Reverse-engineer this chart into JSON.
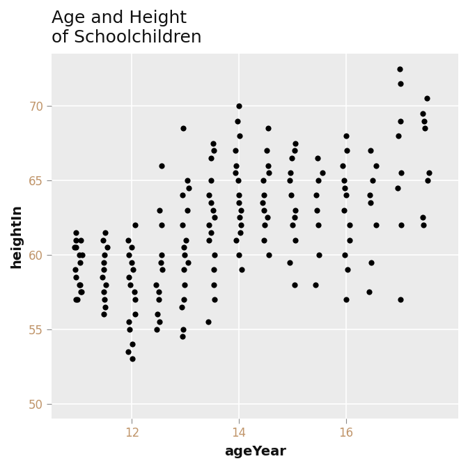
{
  "title": "Age and Height\nof Schoolchildren",
  "xlabel": "ageYear",
  "ylabel": "heightIn",
  "xlim": [
    10.5,
    18.1
  ],
  "ylim": [
    49.0,
    73.5
  ],
  "xticks": [
    12,
    14,
    16
  ],
  "yticks": [
    50,
    55,
    60,
    65,
    70
  ],
  "bg_color": "#EBEBEB",
  "grid_color": "#FFFFFF",
  "dot_color": "#000000",
  "dot_size": 35,
  "title_fontsize": 18,
  "label_fontsize": 14,
  "tick_fontsize": 12,
  "tick_color": "#C0956A",
  "jitter_seed": 42,
  "jitter_amount": 0.07,
  "x_base": [
    11.0,
    11.0,
    11.0,
    11.0,
    11.0,
    11.0,
    11.0,
    11.0,
    11.0,
    11.0,
    11.0,
    11.0,
    11.0,
    11.0,
    11.0,
    11.0,
    11.5,
    11.5,
    11.5,
    11.5,
    11.5,
    11.5,
    11.5,
    11.5,
    11.5,
    11.5,
    11.5,
    11.5,
    12.0,
    12.0,
    12.0,
    12.0,
    12.0,
    12.0,
    12.0,
    12.0,
    12.0,
    12.0,
    12.0,
    12.0,
    12.0,
    12.0,
    12.0,
    12.0,
    12.5,
    12.5,
    12.5,
    12.5,
    12.5,
    12.5,
    12.5,
    12.5,
    12.5,
    12.5,
    12.5,
    12.5,
    13.0,
    13.0,
    13.0,
    13.0,
    13.0,
    13.0,
    13.0,
    13.0,
    13.0,
    13.0,
    13.0,
    13.0,
    13.0,
    13.0,
    13.0,
    13.0,
    13.5,
    13.5,
    13.5,
    13.5,
    13.5,
    13.5,
    13.5,
    13.5,
    13.5,
    13.5,
    13.5,
    13.5,
    13.5,
    13.5,
    13.5,
    13.5,
    14.0,
    14.0,
    14.0,
    14.0,
    14.0,
    14.0,
    14.0,
    14.0,
    14.0,
    14.0,
    14.0,
    14.0,
    14.0,
    14.0,
    14.0,
    14.0,
    14.5,
    14.5,
    14.5,
    14.5,
    14.5,
    14.5,
    14.5,
    14.5,
    14.5,
    14.5,
    14.5,
    14.5,
    15.0,
    15.0,
    15.0,
    15.0,
    15.0,
    15.0,
    15.0,
    15.0,
    15.0,
    15.0,
    15.0,
    15.0,
    15.5,
    15.5,
    15.5,
    15.5,
    15.5,
    15.5,
    15.5,
    15.5,
    16.0,
    16.0,
    16.0,
    16.0,
    16.0,
    16.0,
    16.0,
    16.0,
    16.0,
    16.0,
    16.0,
    16.0,
    16.5,
    16.5,
    16.5,
    16.5,
    16.5,
    16.5,
    16.5,
    16.5,
    17.0,
    17.0,
    17.0,
    17.0,
    17.0,
    17.0,
    17.0,
    17.0,
    17.5,
    17.5,
    17.5,
    17.5,
    17.5,
    17.5,
    17.5,
    17.5
  ],
  "y": [
    57.0,
    57.5,
    58.0,
    58.0,
    57.0,
    58.5,
    59.0,
    57.5,
    60.0,
    59.5,
    60.5,
    60.0,
    61.0,
    60.5,
    61.5,
    61.0,
    56.0,
    56.5,
    57.0,
    57.5,
    58.0,
    58.5,
    59.0,
    59.5,
    60.0,
    60.5,
    61.0,
    61.5,
    53.0,
    53.5,
    54.0,
    55.0,
    55.5,
    56.0,
    57.0,
    57.5,
    58.0,
    58.5,
    59.0,
    59.5,
    60.0,
    60.5,
    61.0,
    62.0,
    55.0,
    55.5,
    56.0,
    57.0,
    57.5,
    58.0,
    59.0,
    59.5,
    60.0,
    62.0,
    63.0,
    66.0,
    54.5,
    55.0,
    56.5,
    57.0,
    58.0,
    59.0,
    59.5,
    60.0,
    60.5,
    61.0,
    62.0,
    63.0,
    64.0,
    64.5,
    65.0,
    68.5,
    55.5,
    57.0,
    58.0,
    59.0,
    60.0,
    61.0,
    61.5,
    62.0,
    62.5,
    63.0,
    63.5,
    64.0,
    65.0,
    66.5,
    67.0,
    67.5,
    59.0,
    60.0,
    61.0,
    61.5,
    62.0,
    62.5,
    63.0,
    63.5,
    64.0,
    65.0,
    65.5,
    66.0,
    67.0,
    68.0,
    69.0,
    70.0,
    60.0,
    61.0,
    62.0,
    62.5,
    63.0,
    63.5,
    64.0,
    65.0,
    65.5,
    66.0,
    67.0,
    68.5,
    58.0,
    59.5,
    61.0,
    62.0,
    62.5,
    63.0,
    64.0,
    65.0,
    65.5,
    66.5,
    67.0,
    67.5,
    58.0,
    60.0,
    62.0,
    63.0,
    64.0,
    65.0,
    65.5,
    66.5,
    57.0,
    59.0,
    60.0,
    61.0,
    62.0,
    63.0,
    64.0,
    64.5,
    65.0,
    66.0,
    67.0,
    68.0,
    57.5,
    59.5,
    62.0,
    63.5,
    64.0,
    65.0,
    66.0,
    67.0,
    57.0,
    62.0,
    64.5,
    65.5,
    68.0,
    69.0,
    71.5,
    72.5,
    62.0,
    65.5,
    68.5,
    69.0,
    69.5,
    70.5,
    65.0,
    62.5
  ]
}
